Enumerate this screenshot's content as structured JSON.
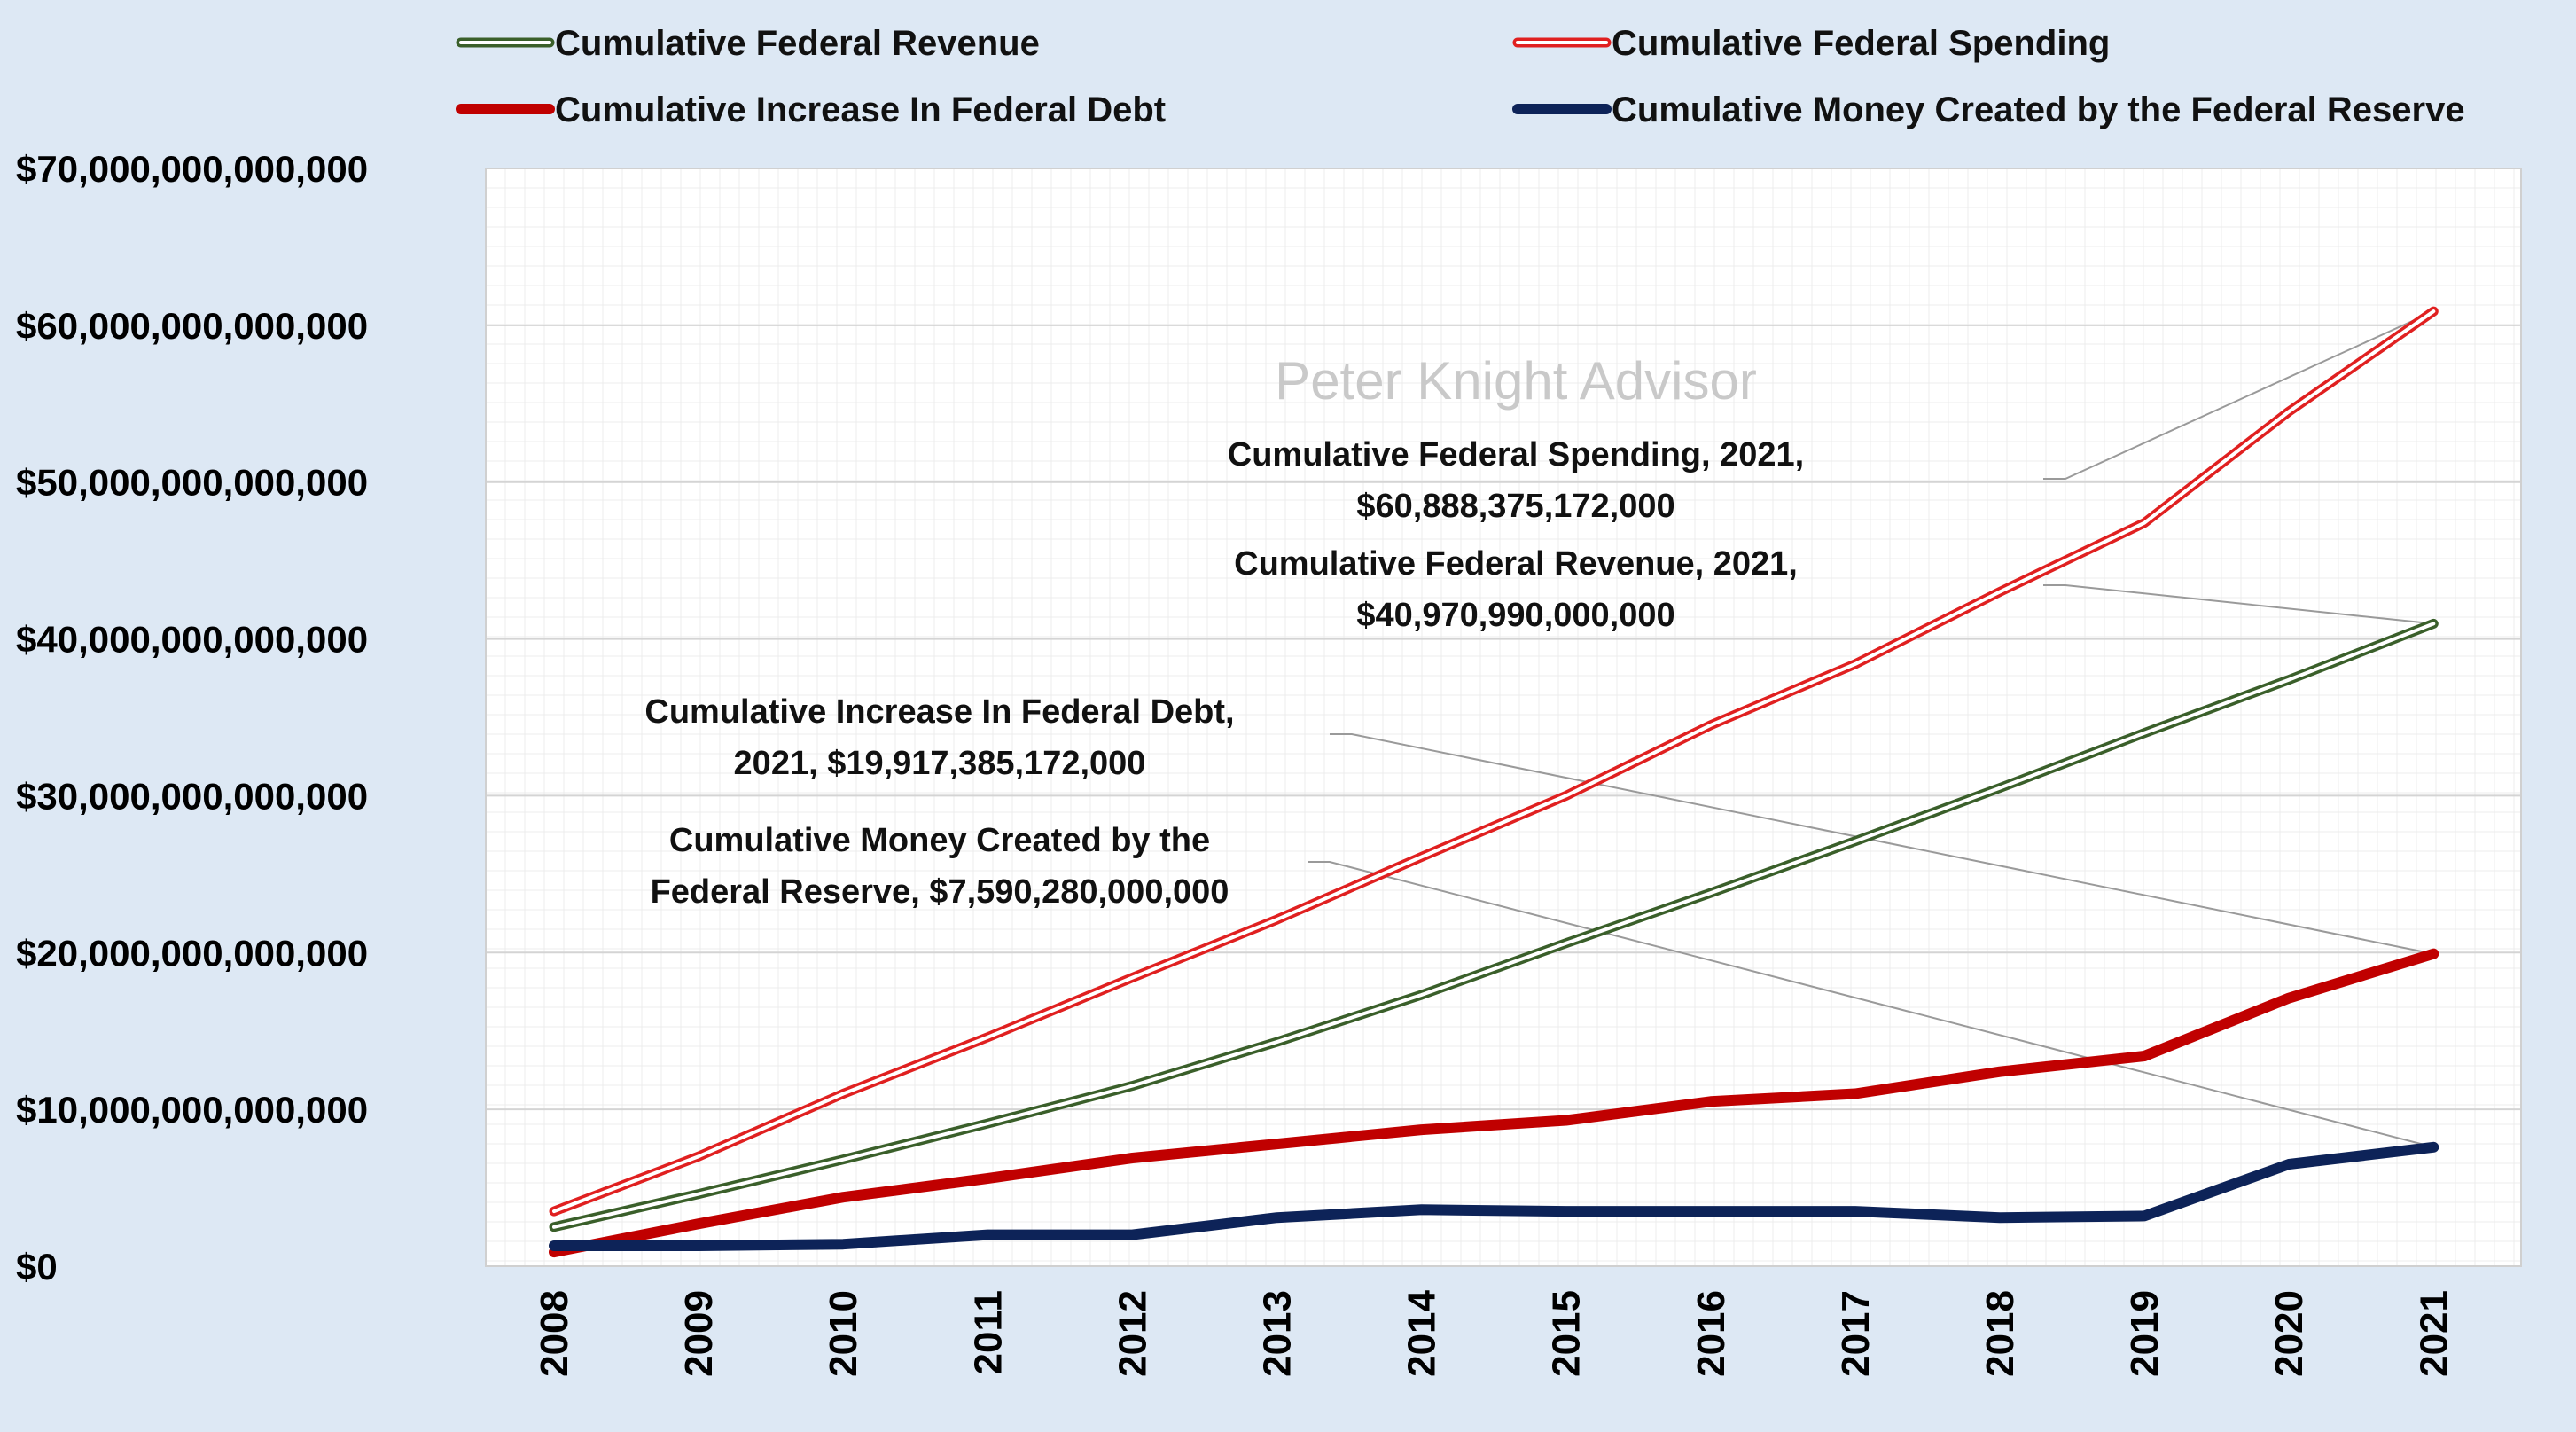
{
  "chart_data": {
    "type": "line",
    "title": "",
    "xlabel": "",
    "ylabel": "",
    "watermark": "Peter Knight Advisor",
    "categories": [
      "2008",
      "2009",
      "2010",
      "2011",
      "2012",
      "2013",
      "2014",
      "2015",
      "2016",
      "2017",
      "2018",
      "2019",
      "2020",
      "2021"
    ],
    "ylim": [
      0,
      70000000000000
    ],
    "yticks": [
      0,
      10000000000000,
      20000000000000,
      30000000000000,
      40000000000000,
      50000000000000,
      60000000000000,
      70000000000000
    ],
    "ytick_labels": [
      "$0",
      "$10,000,000,000,000",
      "$20,000,000,000,000",
      "$30,000,000,000,000",
      "$40,000,000,000,000",
      "$50,000,000,000,000",
      "$60,000,000,000,000",
      "$70,000,000,000,000"
    ],
    "legend_position": "top",
    "series": [
      {
        "name": "Cumulative Federal Revenue",
        "style": "double",
        "color": "#3a5f2a",
        "values": [
          2500000000000,
          4600000000000,
          6800000000000,
          9100000000000,
          11500000000000,
          14300000000000,
          17300000000000,
          20600000000000,
          23800000000000,
          27100000000000,
          30500000000000,
          34000000000000,
          37400000000000,
          40970990000000
        ]
      },
      {
        "name": "Cumulative Federal Spending",
        "style": "double",
        "color": "#e02020",
        "values": [
          3500000000000,
          7000000000000,
          11000000000000,
          14600000000000,
          18400000000000,
          22100000000000,
          26100000000000,
          30000000000000,
          34500000000000,
          38400000000000,
          43000000000000,
          47400000000000,
          54500000000000,
          60888375172000
        ]
      },
      {
        "name": "Cumulative Increase In Federal Debt",
        "style": "thick",
        "color": "#c00000",
        "values": [
          900000000000,
          2700000000000,
          4400000000000,
          5600000000000,
          6900000000000,
          7800000000000,
          8700000000000,
          9300000000000,
          10500000000000,
          11000000000000,
          12400000000000,
          13400000000000,
          17100000000000,
          19917385172000
        ]
      },
      {
        "name": "Cumulative Money Created by the Federal Reserve",
        "style": "thick",
        "color": "#0d2358",
        "values": [
          1300000000000,
          1300000000000,
          1400000000000,
          2000000000000,
          2000000000000,
          3100000000000,
          3600000000000,
          3500000000000,
          3500000000000,
          3500000000000,
          3100000000000,
          3200000000000,
          6500000000000,
          7590280000000
        ]
      }
    ],
    "annotations": [
      {
        "series": "Cumulative Federal Spending",
        "lines": [
          "Cumulative Federal Spending, 2021,",
          "$60,888,375,172,000"
        ]
      },
      {
        "series": "Cumulative Federal Revenue",
        "lines": [
          "Cumulative Federal Revenue, 2021,",
          "$40,970,990,000,000"
        ]
      },
      {
        "series": "Cumulative Increase In Federal Debt",
        "lines": [
          "Cumulative Increase In Federal Debt,",
          "2021, $19,917,385,172,000"
        ]
      },
      {
        "series": "Cumulative Money Created by the Federal Reserve",
        "lines": [
          "Cumulative Money Created by the",
          "Federal Reserve, $7,590,280,000,000"
        ]
      }
    ]
  }
}
